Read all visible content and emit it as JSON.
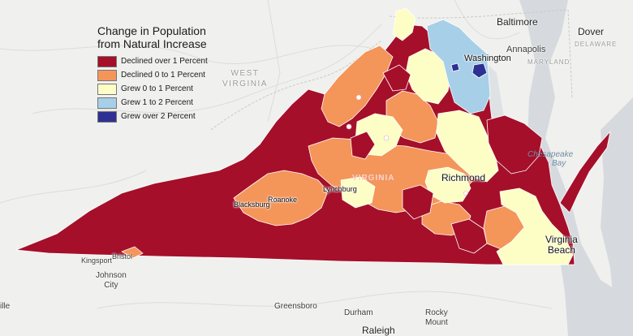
{
  "map": {
    "legend": {
      "title": "Change in Population from Natural Increase",
      "items": [
        {
          "label": "Declined over 1 Percent",
          "color": "#a50f2a"
        },
        {
          "label": "Declined 0 to 1 Percent",
          "color": "#f4955a"
        },
        {
          "label": "Grew 0 to 1 Percent",
          "color": "#fdfdc6"
        },
        {
          "label": "Grew 1 to 2 Percent",
          "color": "#a7cfe8"
        },
        {
          "label": "Grew over 2 Percent",
          "color": "#2e3192"
        }
      ]
    },
    "places": {
      "baltimore": "Baltimore",
      "dover": "Dover",
      "delaware": "DELAWARE",
      "annapolis": "Annapolis",
      "maryland": "MARYLAND",
      "washington": "Washington",
      "west_virginia_1": "WEST",
      "west_virginia_2": "VIRGINIA",
      "virginia": "VIRGINIA",
      "chesapeake_1": "Chesapeake",
      "chesapeake_2": "Bay",
      "richmond": "Richmond",
      "lynchburg": "Lynchburg",
      "roanoke": "Roanoke",
      "blacksburg": "Blacksburg",
      "kingsport": "Kingsport",
      "bristol": "Bristol",
      "johnson_city_1": "Johnson",
      "johnson_city_2": "City",
      "virginia_beach_1": "Virginia",
      "virginia_beach_2": "Beach",
      "greensboro": "Greensboro",
      "durham": "Durham",
      "rocky_mount_1": "Rocky",
      "rocky_mount_2": "Mount",
      "raleigh": "Raleigh",
      "edge_ille": "ille"
    }
  }
}
